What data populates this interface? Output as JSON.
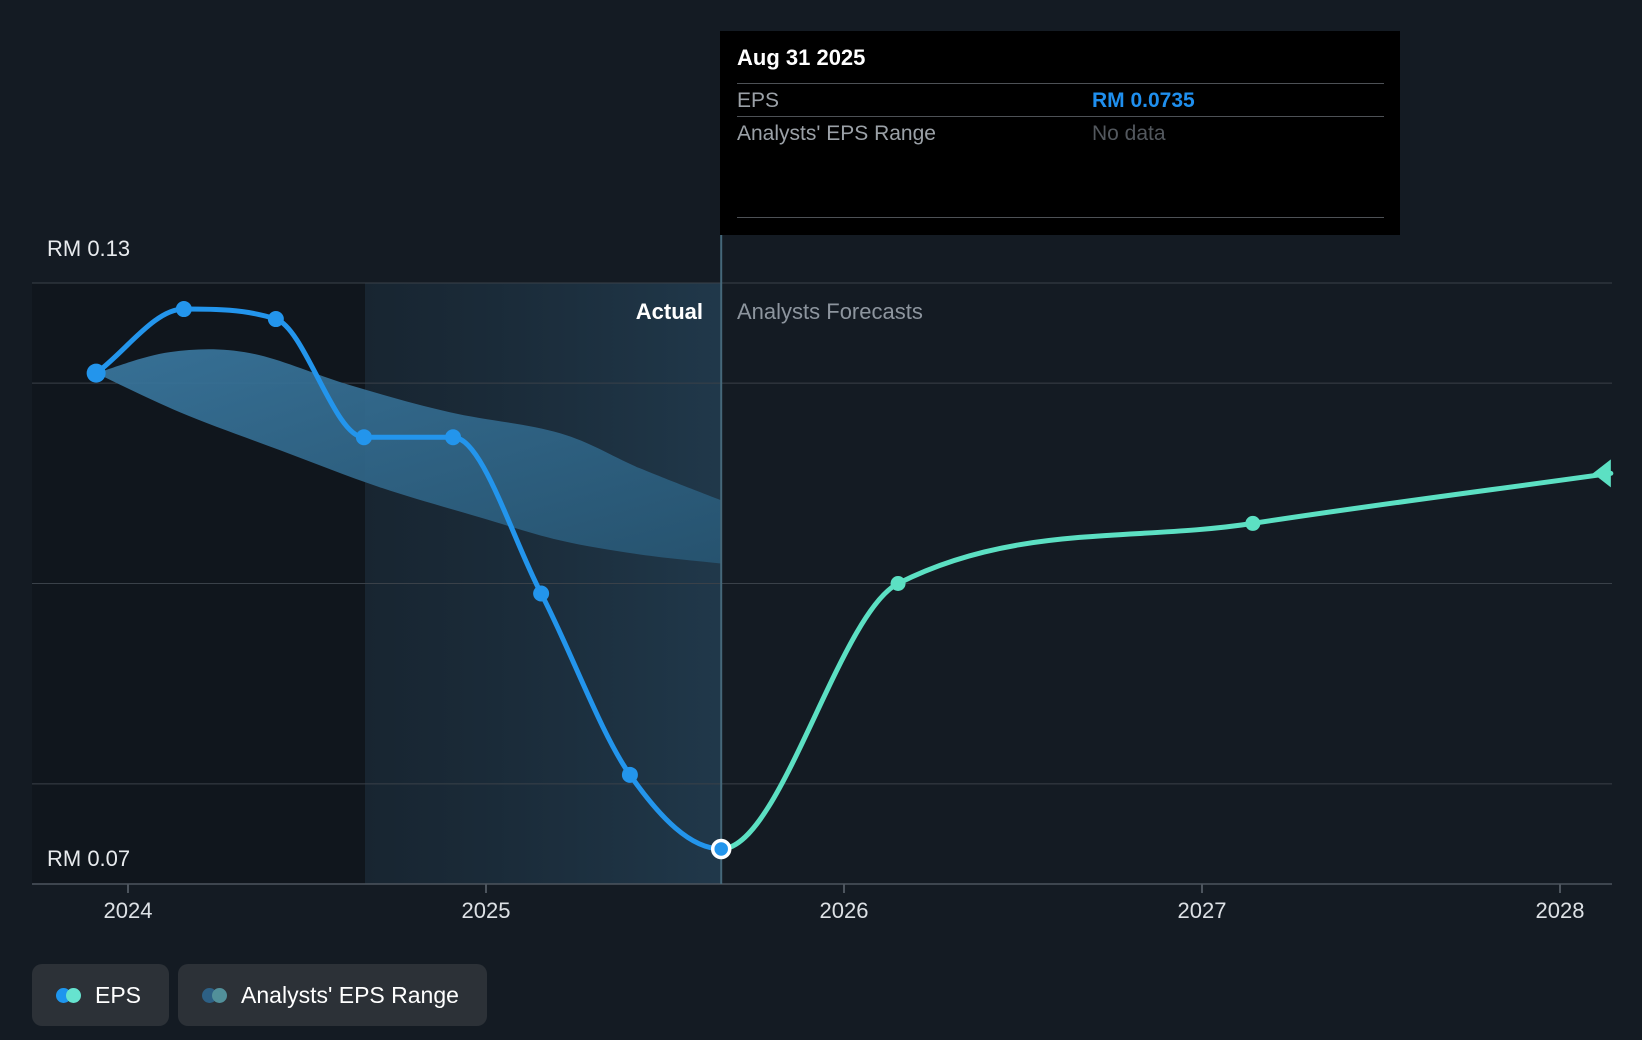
{
  "tooltip": {
    "title": "Aug 31 2025",
    "rows": [
      {
        "label": "EPS",
        "value": "RM 0.0735",
        "value_color": "#1f8fee"
      },
      {
        "label": "Analysts' EPS Range",
        "value": "No data",
        "value_color": "#53585e"
      }
    ]
  },
  "annotations": {
    "actual_label": "Actual",
    "forecast_label": "Analysts Forecasts"
  },
  "y_axis": {
    "top_label": "RM 0.13",
    "bottom_label": "RM 0.07"
  },
  "legend": [
    {
      "label": "EPS",
      "colors": [
        "#1e96ee",
        "#66e3cf"
      ]
    },
    {
      "label": "Analysts' EPS Range",
      "colors": [
        "#2d6085",
        "#52909a"
      ]
    }
  ],
  "colors": {
    "background": "#141b23",
    "actual_line": "#2395ec",
    "forecast_line": "#5ce0c3",
    "band_gradient": [
      "#3a78a0",
      "#275572"
    ],
    "gridline": "#3a4149",
    "axis": "#4d555e",
    "divider": "#45687a",
    "tooltip_bg": "#000000"
  },
  "chart_data": {
    "type": "line",
    "title": "EPS actual vs analysts forecast (RM)",
    "ylim": [
      0.07,
      0.13
    ],
    "xlim": [
      2023.73,
      2028.23
    ],
    "gridline_values": [
      0.13,
      0.12,
      0.1,
      0.08
    ],
    "x_ticks": [
      2024,
      2025,
      2026,
      2027,
      2028
    ],
    "divider_x": 2025.657,
    "highlight_window": [
      2024.662,
      2025.657
    ],
    "series": [
      {
        "name": "EPS (actual)",
        "x": [
          2023.911,
          2024.156,
          2024.413,
          2024.659,
          2024.908,
          2025.154,
          2025.402,
          2025.657
        ],
        "y": [
          0.121,
          0.1274,
          0.1264,
          0.1146,
          0.1146,
          0.099,
          0.0809,
          0.0735
        ]
      },
      {
        "name": "EPS (analysts forecast)",
        "x": [
          2025.657,
          2026.151,
          2027.142,
          2028.142
        ],
        "y": [
          0.0735,
          0.1,
          0.106,
          0.111
        ]
      }
    ],
    "range_band": {
      "name": "Analysts' EPS Range (historical)",
      "x_top": [
        2023.911,
        2024.117,
        2024.341,
        2024.62,
        2024.899,
        2025.207,
        2025.43,
        2025.657
      ],
      "top": [
        0.121,
        0.1231,
        0.123,
        0.1198,
        0.1171,
        0.115,
        0.1115,
        0.1083
      ],
      "x_bottom": [
        2023.911,
        2024.145,
        2024.425,
        2024.704,
        2024.983,
        2025.207,
        2025.43,
        2025.657
      ],
      "bottom": [
        0.121,
        0.1171,
        0.1133,
        0.1096,
        0.1066,
        0.1043,
        0.1029,
        0.102
      ]
    }
  }
}
